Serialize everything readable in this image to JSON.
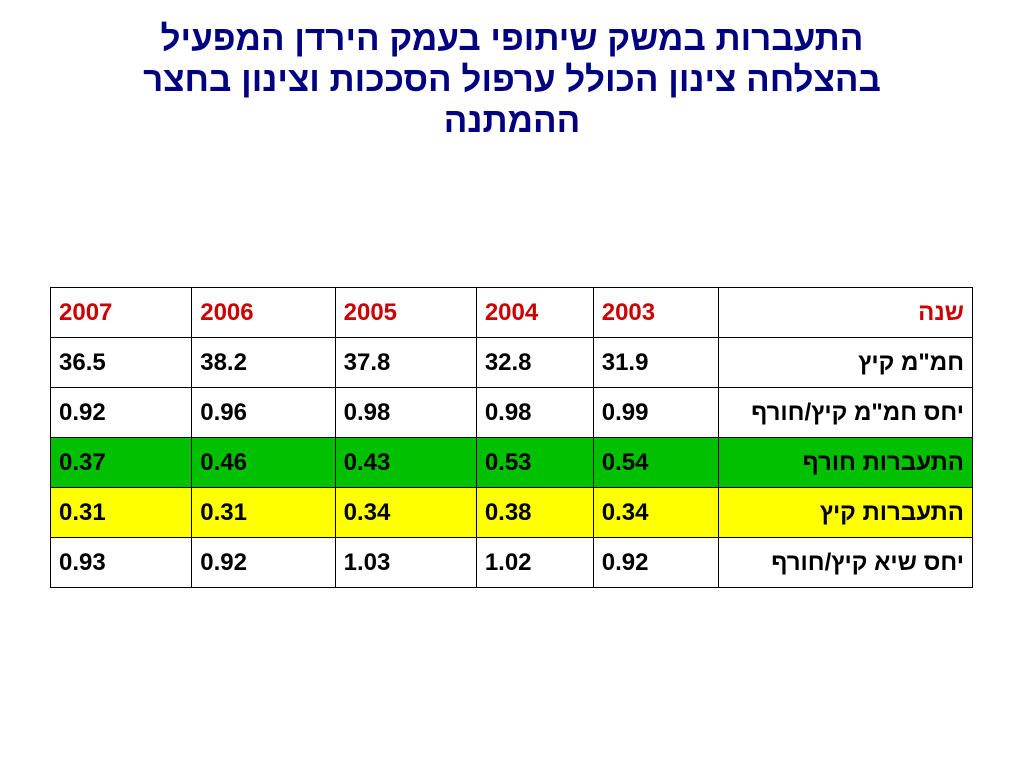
{
  "title": {
    "lines": [
      "התעברות במשק שיתופי בעמק הירדן המפעיל",
      "בהצלחה צינון הכולל ערפול הסככות וצינון בחצר",
      "ההמתנה"
    ]
  },
  "table": {
    "header": {
      "label": "שנה",
      "years": [
        "2003",
        "2004",
        "2005",
        "2006",
        "2007"
      ]
    },
    "rows": [
      {
        "label": "חמ\"מ קיץ",
        "values": [
          "31.9",
          "32.8",
          "37.8",
          "38.2",
          "36.5"
        ],
        "highlight": "none"
      },
      {
        "label": "יחס חמ\"מ קיץ/חורף",
        "values": [
          "0.99",
          "0.98",
          "0.98",
          "0.96",
          "0.92"
        ],
        "highlight": "none"
      },
      {
        "label": "התעברות חורף",
        "values": [
          "0.54",
          "0.53",
          "0.43",
          "0.46",
          "0.37"
        ],
        "highlight": "green"
      },
      {
        "label": "התעברות קיץ",
        "values": [
          "0.34",
          "0.38",
          "0.34",
          "0.31",
          "0.31"
        ],
        "highlight": "yellow"
      },
      {
        "label": "יחס  שיא קיץ/חורף",
        "values": [
          "0.92",
          "1.02",
          "1.03",
          "0.92",
          "0.93"
        ],
        "highlight": "none"
      }
    ]
  },
  "colors": {
    "title": "#000080",
    "header_text": "#cc0000",
    "green_row": "#00c000",
    "yellow_row": "#ffff00"
  }
}
